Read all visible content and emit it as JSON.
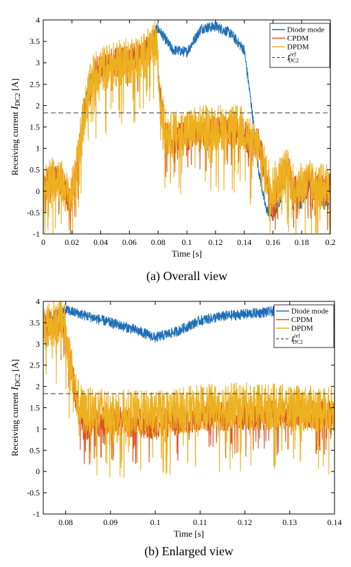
{
  "colors": {
    "diode": "#1f6fb5",
    "cpdm": "#d9531e",
    "dpdm": "#edb120",
    "ref": "#333333",
    "axis": "#000000"
  },
  "chart_data": [
    {
      "type": "line",
      "caption": "(a) Overall view",
      "xlabel": "Time [s]",
      "ylabel_prefix": "Receiving current",
      "ylabel_var": "I",
      "ylabel_sub": "DC2",
      "ylabel_unit": "[A]",
      "xlim": [
        0,
        0.2
      ],
      "ylim": [
        -1,
        4
      ],
      "xticks": [
        0,
        0.02,
        0.04,
        0.06,
        0.08,
        0.1,
        0.12,
        0.14,
        0.16,
        0.18,
        0.2
      ],
      "xtick_labels": [
        "0",
        "0.02",
        "0.04",
        "0.06",
        "0.08",
        "0.1",
        "0.12",
        "0.14",
        "0.16",
        "0.18",
        "0.2"
      ],
      "yticks": [
        -1,
        -0.5,
        0,
        0.5,
        1,
        1.5,
        2,
        2.5,
        3,
        3.5,
        4
      ],
      "ytick_labels": [
        "-1",
        "-0.5",
        "0",
        "0.5",
        "1",
        "1.5",
        "2",
        "2.5",
        "3",
        "3.5",
        "4"
      ],
      "legend_position": "top-right",
      "reference": {
        "name": "I",
        "sup": "ref",
        "sub": "DC2",
        "value": 1.83
      },
      "series": [
        {
          "name": "Diode mode",
          "color_key": "diode",
          "ripple": 0.12,
          "x": [
            0,
            0.005,
            0.01,
            0.015,
            0.018,
            0.022,
            0.026,
            0.03,
            0.035,
            0.04,
            0.05,
            0.06,
            0.07,
            0.079,
            0.081,
            0.09,
            0.1,
            0.11,
            0.12,
            0.13,
            0.14,
            0.145,
            0.15,
            0.155,
            0.16,
            0.165,
            0.17,
            0.175,
            0.18,
            0.185,
            0.19,
            0.195,
            0.2
          ],
          "y": [
            0.05,
            0.25,
            0.35,
            0.05,
            -0.3,
            0.2,
            1.3,
            2.1,
            2.7,
            2.85,
            3.0,
            3.1,
            3.2,
            3.8,
            3.75,
            3.3,
            3.25,
            3.8,
            3.85,
            3.7,
            3.3,
            2.0,
            0.5,
            -0.4,
            -0.6,
            -0.2,
            0.6,
            -0.2,
            -0.3,
            0.2,
            0.0,
            -0.3,
            -0.35
          ]
        },
        {
          "name": "CPDM",
          "color_key": "cpdm",
          "ripple": 0.35,
          "x": [
            0,
            0.005,
            0.01,
            0.015,
            0.018,
            0.022,
            0.026,
            0.03,
            0.035,
            0.04,
            0.05,
            0.06,
            0.07,
            0.079,
            0.081,
            0.085,
            0.09,
            0.1,
            0.11,
            0.12,
            0.13,
            0.14,
            0.145,
            0.15,
            0.155,
            0.16,
            0.165,
            0.17,
            0.175,
            0.18,
            0.185,
            0.19,
            0.195,
            0.2
          ],
          "y": [
            0.05,
            0.25,
            0.35,
            0.05,
            -0.25,
            0.2,
            1.3,
            2.1,
            2.7,
            2.9,
            3.0,
            3.1,
            3.2,
            3.5,
            2.2,
            1.3,
            1.2,
            1.3,
            1.4,
            1.4,
            1.4,
            1.35,
            1.0,
            1.2,
            0.3,
            -0.4,
            0.3,
            0.6,
            0.0,
            0.1,
            0.2,
            0.1,
            0.0,
            0.1
          ]
        },
        {
          "name": "DPDM",
          "color_key": "dpdm",
          "ripple": 0.55,
          "x": [
            0,
            0.005,
            0.01,
            0.015,
            0.018,
            0.022,
            0.026,
            0.03,
            0.035,
            0.04,
            0.05,
            0.06,
            0.07,
            0.079,
            0.081,
            0.085,
            0.09,
            0.1,
            0.11,
            0.12,
            0.13,
            0.14,
            0.145,
            0.15,
            0.155,
            0.16,
            0.165,
            0.17,
            0.175,
            0.18,
            0.185,
            0.19,
            0.195,
            0.2
          ],
          "y": [
            0.05,
            0.25,
            0.35,
            0.05,
            -0.2,
            0.2,
            1.3,
            2.1,
            2.7,
            2.85,
            2.95,
            3.05,
            3.15,
            3.5,
            2.2,
            1.4,
            1.3,
            1.4,
            1.45,
            1.5,
            1.5,
            1.45,
            1.1,
            1.0,
            0.4,
            0.1,
            0.3,
            0.5,
            0.1,
            0.15,
            0.2,
            0.1,
            0.1,
            0.15
          ]
        }
      ]
    },
    {
      "type": "line",
      "caption": "(b) Enlarged view",
      "xlabel": "Time [s]",
      "ylabel_prefix": "Receiving current",
      "ylabel_var": "I",
      "ylabel_sub": "DC2",
      "ylabel_unit": "[A]",
      "xlim": [
        0.075,
        0.14
      ],
      "ylim": [
        -1,
        4
      ],
      "xticks": [
        0.08,
        0.09,
        0.1,
        0.11,
        0.12,
        0.13,
        0.14
      ],
      "xtick_labels": [
        "0.08",
        "0.09",
        "0.1",
        "0.11",
        "0.12",
        "0.13",
        "0.14"
      ],
      "yticks": [
        -1,
        -0.5,
        0,
        0.5,
        1,
        1.5,
        2,
        2.5,
        3,
        3.5,
        4
      ],
      "ytick_labels": [
        "-1",
        "-0.5",
        "0",
        "0.5",
        "1",
        "1.5",
        "2",
        "2.5",
        "3",
        "3.5",
        "4"
      ],
      "legend_position": "top-right",
      "reference": {
        "name": "I",
        "sup": "ref",
        "sub": "DC2",
        "value": 1.83
      },
      "series": [
        {
          "name": "Diode mode",
          "color_key": "diode",
          "ripple": 0.12,
          "x": [
            0.075,
            0.078,
            0.08,
            0.085,
            0.09,
            0.095,
            0.1,
            0.105,
            0.11,
            0.115,
            0.12,
            0.125,
            0.13,
            0.135,
            0.138,
            0.14
          ],
          "y": [
            3.55,
            3.7,
            3.8,
            3.65,
            3.5,
            3.35,
            3.15,
            3.3,
            3.55,
            3.65,
            3.7,
            3.75,
            3.8,
            3.75,
            3.7,
            3.5
          ]
        },
        {
          "name": "CPDM",
          "color_key": "cpdm",
          "ripple": 0.35,
          "x": [
            0.075,
            0.078,
            0.0795,
            0.081,
            0.0825,
            0.084,
            0.087,
            0.09,
            0.1,
            0.11,
            0.12,
            0.13,
            0.14
          ],
          "y": [
            3.4,
            3.5,
            3.6,
            2.6,
            1.6,
            1.05,
            1.15,
            1.2,
            1.1,
            1.3,
            1.3,
            1.35,
            1.35
          ]
        },
        {
          "name": "DPDM",
          "color_key": "dpdm",
          "ripple": 0.55,
          "x": [
            0.075,
            0.078,
            0.0795,
            0.081,
            0.0825,
            0.084,
            0.087,
            0.09,
            0.1,
            0.11,
            0.12,
            0.13,
            0.14
          ],
          "y": [
            3.4,
            3.5,
            3.6,
            2.6,
            1.7,
            1.4,
            1.45,
            1.4,
            1.35,
            1.5,
            1.55,
            1.5,
            1.45
          ]
        }
      ]
    }
  ]
}
